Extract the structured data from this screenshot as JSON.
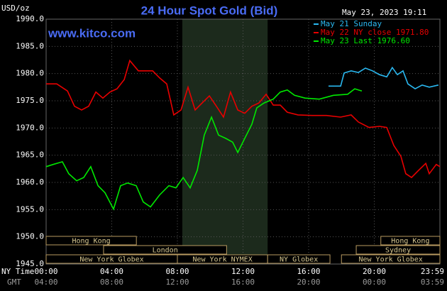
{
  "chart_data": {
    "type": "line",
    "title": "24 Hour Spot Gold (Bid)",
    "unit_label": "USD/oz",
    "website": "www.kitco.com",
    "timestamp": "May 23, 2023 19:11",
    "x_axis_label": "NY Time",
    "x2_axis_label": "GMT",
    "xlim": [
      0,
      24
    ],
    "xticks": [
      {
        "value": 0,
        "label": "00:00"
      },
      {
        "value": 4,
        "label": "04:00"
      },
      {
        "value": 8,
        "label": "08:00"
      },
      {
        "value": 12,
        "label": "12:00"
      },
      {
        "value": 16,
        "label": "16:00"
      },
      {
        "value": 20,
        "label": "20:00"
      },
      {
        "value": 24,
        "label": "23:59"
      }
    ],
    "x2_tick_labels": [
      "04:00",
      "08:00",
      "12:00",
      "16:00",
      "20:00",
      "00:00",
      "03:59"
    ],
    "ylim": [
      1945,
      1990
    ],
    "yticks": [
      {
        "value": 1945,
        "label": "1945.0"
      },
      {
        "value": 1950,
        "label": "1950.0"
      },
      {
        "value": 1955,
        "label": "1955.0"
      },
      {
        "value": 1960,
        "label": "1960.0"
      },
      {
        "value": 1965,
        "label": "1965.0"
      },
      {
        "value": 1970,
        "label": "1970.0"
      },
      {
        "value": 1975,
        "label": "1975.0"
      },
      {
        "value": 1980,
        "label": "1980.0"
      },
      {
        "value": 1985,
        "label": "1985.0"
      },
      {
        "value": 1990,
        "label": "1990.0"
      }
    ],
    "grid": true,
    "shaded_range": [
      8.3,
      13.5
    ],
    "series": [
      {
        "name": "May 21 Sunday",
        "color": "#2ab8f0",
        "x": [
          17.21,
          17.95,
          18.16,
          18.59,
          19.03,
          19.46,
          19.89,
          20.32,
          20.76,
          21.1,
          21.41,
          21.75,
          22.05,
          22.49,
          22.92,
          23.35,
          23.91
        ],
        "values": [
          1977.7,
          1977.7,
          1980.1,
          1980.5,
          1980.2,
          1981.0,
          1980.5,
          1979.8,
          1979.4,
          1981.1,
          1979.8,
          1980.5,
          1978.1,
          1977.2,
          1977.9,
          1977.5,
          1977.9
        ]
      },
      {
        "name": "May 22 NY close 1971.80",
        "color": "#e80000",
        "x": [
          0,
          0.65,
          1.3,
          1.73,
          2.16,
          2.59,
          3.03,
          3.46,
          3.89,
          4.32,
          4.76,
          5.1,
          5.62,
          6.05,
          6.49,
          6.92,
          7.35,
          7.78,
          8.22,
          8.65,
          9.08,
          9.51,
          9.95,
          10.38,
          10.81,
          11.24,
          11.68,
          12.11,
          12.54,
          12.97,
          13.41,
          13.84,
          14.27,
          14.7,
          15.35,
          16.22,
          17.08,
          17.95,
          18.59,
          19.03,
          19.68,
          20.32,
          20.76,
          21.19,
          21.62,
          21.92,
          22.27,
          22.7,
          23.14,
          23.35,
          23.78,
          24
        ],
        "values": [
          1978.1,
          1978.1,
          1976.8,
          1974.0,
          1973.3,
          1974.0,
          1976.6,
          1975.5,
          1976.6,
          1977.2,
          1978.9,
          1982.4,
          1980.5,
          1980.5,
          1980.5,
          1979.2,
          1978.1,
          1972.4,
          1973.3,
          1977.5,
          1973.3,
          1974.6,
          1975.9,
          1974.0,
          1972.0,
          1976.6,
          1973.3,
          1972.7,
          1974.0,
          1974.6,
          1976.2,
          1974.2,
          1974.2,
          1972.9,
          1972.4,
          1972.3,
          1972.3,
          1972.0,
          1972.4,
          1971.1,
          1970.1,
          1970.3,
          1970.1,
          1966.8,
          1964.8,
          1961.6,
          1960.9,
          1962.2,
          1963.5,
          1961.6,
          1963.3,
          1962.9
        ]
      },
      {
        "name": "May 23 Last 1976.60",
        "color": "#00e800",
        "x": [
          0,
          0.43,
          0.99,
          1.38,
          1.86,
          2.29,
          2.72,
          3.16,
          3.59,
          4.11,
          4.54,
          4.97,
          5.49,
          5.92,
          6.36,
          6.92,
          7.48,
          7.91,
          8.35,
          8.78,
          9.21,
          9.64,
          10.08,
          10.51,
          10.94,
          11.37,
          11.68,
          12.11,
          12.54,
          12.84,
          13.28,
          13.84,
          14.27,
          14.7,
          15.14,
          15.78,
          16.65,
          17.51,
          18.38,
          18.81,
          19.24
        ],
        "values": [
          1962.9,
          1963.3,
          1963.8,
          1961.6,
          1960.3,
          1960.9,
          1962.9,
          1959.4,
          1958.1,
          1955.1,
          1959.4,
          1959.9,
          1959.4,
          1956.4,
          1955.5,
          1957.7,
          1959.4,
          1959.0,
          1960.9,
          1959.0,
          1962.2,
          1968.7,
          1972.0,
          1968.7,
          1968.1,
          1967.4,
          1965.5,
          1968.1,
          1970.7,
          1973.7,
          1974.6,
          1975.3,
          1976.6,
          1977.0,
          1976.0,
          1975.5,
          1975.3,
          1976.0,
          1976.2,
          1977.2,
          1976.8
        ]
      }
    ],
    "session_rows": [
      [
        {
          "label": "Hong Kong",
          "start": 0,
          "end": 5.5
        },
        {
          "label": "Hong Kong",
          "start": 20.4,
          "end": 24
        }
      ],
      [
        {
          "label": "London",
          "start": 3.5,
          "end": 11
        },
        {
          "label": "Sydney",
          "start": 18.9,
          "end": 24
        }
      ],
      [
        {
          "label": "New York Globex",
          "start": 0,
          "end": 8
        },
        {
          "label": "New York NYMEX",
          "start": 8,
          "end": 13.5
        },
        {
          "label": "NY Globex",
          "start": 13.5,
          "end": 17.3
        },
        {
          "label": "New York Globex",
          "start": 18,
          "end": 24
        }
      ]
    ]
  }
}
